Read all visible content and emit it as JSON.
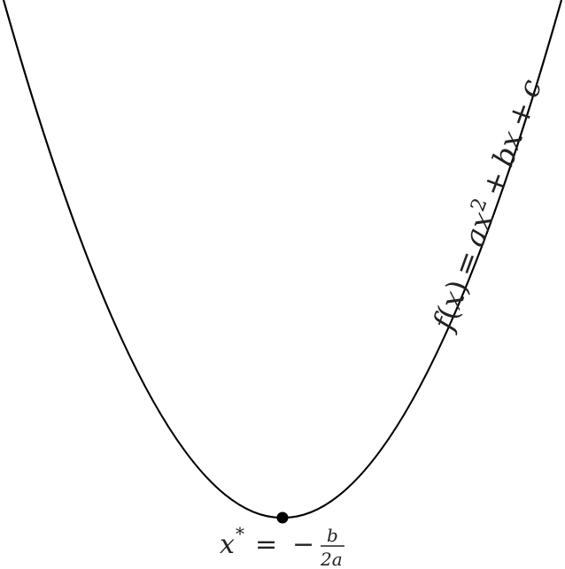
{
  "diagram": {
    "curve_label": {
      "f": "f",
      "open_paren": "(",
      "x": "x",
      "close_paren": ")",
      "equals": "=",
      "a": "a",
      "x2": "x",
      "exponent": "2",
      "plus1": "+",
      "b": "b",
      "x3": "x",
      "plus2": "+",
      "c": "c"
    },
    "vertex_label": {
      "x": "x",
      "star": "*",
      "equals": "=",
      "minus": "−",
      "numerator": "b",
      "denominator": "2a"
    },
    "colors": {
      "curve": "#000000",
      "point": "#000000",
      "text": "#222222"
    }
  }
}
